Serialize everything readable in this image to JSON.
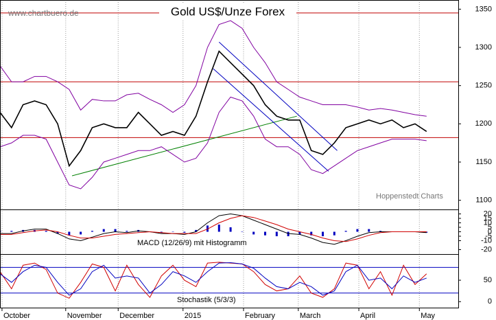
{
  "chart_data": [
    {
      "type": "line",
      "title": "Gold US$/Unze Forex",
      "source": "www.chartbuero.de",
      "credit": "Hoppenstedt Charts",
      "x": [
        0,
        4,
        8,
        12,
        16,
        20,
        24,
        28,
        32,
        36,
        40,
        44,
        48,
        52,
        56,
        60,
        64,
        68,
        72,
        76,
        80,
        84,
        88,
        92,
        96,
        100,
        104,
        108,
        112,
        116,
        120,
        124,
        128,
        132,
        136,
        140,
        144,
        148
      ],
      "series": [
        {
          "color": "#000000",
          "values": [
            1215,
            1195,
            1225,
            1230,
            1225,
            1200,
            1145,
            1165,
            1195,
            1200,
            1195,
            1195,
            1215,
            1200,
            1185,
            1190,
            1185,
            1210,
            1255,
            1295,
            1280,
            1265,
            1250,
            1225,
            1210,
            1205,
            1205,
            1165,
            1160,
            1175,
            1195,
            1200,
            1205,
            1200,
            1205,
            1195,
            1200,
            1190
          ]
        },
        {
          "color": "#8000a0",
          "values": [
            1276,
            1255,
            1255,
            1262,
            1262,
            1255,
            1245,
            1218,
            1232,
            1230,
            1230,
            1238,
            1240,
            1232,
            1225,
            1215,
            1225,
            1250,
            1300,
            1330,
            1335,
            1325,
            1300,
            1280,
            1255,
            1245,
            1235,
            1230,
            1225,
            1225,
            1225,
            1222,
            1218,
            1220,
            1218,
            1215,
            1212,
            1210
          ]
        },
        {
          "color": "#8000a0",
          "values": [
            1170,
            1175,
            1185,
            1185,
            1180,
            1150,
            1120,
            1115,
            1130,
            1150,
            1155,
            1160,
            1165,
            1165,
            1170,
            1160,
            1150,
            1155,
            1175,
            1215,
            1235,
            1230,
            1210,
            1180,
            1170,
            1170,
            1160,
            1140,
            1135,
            1145,
            1155,
            1165,
            1170,
            1175,
            1180,
            1180,
            1180,
            1178
          ]
        }
      ],
      "hlines": [
        1345,
        1255,
        1182
      ],
      "hline_color": "#c00000",
      "trendlines": [
        {
          "color": "#008000",
          "x": [
            25,
            103
          ],
          "y": [
            1132,
            1210
          ]
        },
        {
          "color": "#0000c0",
          "x": [
            76,
            117
          ],
          "y": [
            1307,
            1165
          ]
        },
        {
          "color": "#0000c0",
          "x": [
            74,
            114
          ],
          "y": [
            1272,
            1138
          ]
        }
      ],
      "xlim": [
        0,
        159
      ],
      "ylim": [
        1088,
        1362
      ],
      "yticks": [
        1100,
        1150,
        1200,
        1250,
        1300,
        1350
      ]
    },
    {
      "type": "line",
      "label": "MACD (12/26/9) mit Histogramm",
      "x": [
        0,
        4,
        8,
        12,
        16,
        20,
        24,
        28,
        32,
        36,
        40,
        44,
        48,
        52,
        56,
        60,
        64,
        68,
        72,
        76,
        80,
        84,
        88,
        92,
        96,
        100,
        104,
        108,
        112,
        116,
        120,
        124,
        128,
        132,
        136,
        140,
        144,
        148
      ],
      "series": [
        {
          "kind": "bar",
          "color": "#0000c0",
          "values": [
            1,
            1,
            2,
            2,
            1,
            -2,
            -4,
            -3,
            1,
            3,
            3,
            1,
            2,
            0,
            -1,
            0,
            -1,
            2,
            7,
            8,
            5,
            0,
            -3,
            -4,
            -5,
            -5,
            -3,
            -4,
            -5,
            -4,
            1,
            3,
            3,
            1,
            0,
            0,
            0,
            -1
          ]
        },
        {
          "color": "#000000",
          "values": [
            -2,
            -2,
            1,
            3,
            3,
            -2,
            -8,
            -10,
            -6,
            -2,
            0,
            -1,
            1,
            0,
            -2,
            -2,
            -3,
            0,
            10,
            18,
            20,
            18,
            13,
            8,
            3,
            -2,
            -3,
            -7,
            -12,
            -14,
            -10,
            -5,
            -1,
            0,
            0,
            0,
            0,
            -1
          ]
        },
        {
          "color": "#d00000",
          "values": [
            -3,
            -3,
            -1,
            1,
            2,
            0,
            -4,
            -7,
            -7,
            -5,
            -3,
            -2,
            -1,
            0,
            -1,
            -2,
            -2,
            -2,
            3,
            10,
            15,
            18,
            16,
            12,
            8,
            3,
            0,
            -3,
            -7,
            -10,
            -11,
            -8,
            -4,
            -1,
            0,
            0,
            0,
            0
          ]
        }
      ],
      "xlim": [
        0,
        159
      ],
      "ylim": [
        -25,
        25
      ],
      "yticks": [
        20,
        15,
        10,
        5,
        0,
        -5,
        -10,
        -20
      ]
    },
    {
      "type": "line",
      "label": "Stochastik (5/3/3)",
      "x": [
        0,
        4,
        8,
        12,
        16,
        20,
        24,
        28,
        32,
        36,
        40,
        44,
        48,
        52,
        56,
        60,
        64,
        68,
        72,
        76,
        80,
        84,
        88,
        92,
        96,
        100,
        104,
        108,
        112,
        116,
        120,
        124,
        128,
        132,
        136,
        140,
        144,
        148
      ],
      "series": [
        {
          "color": "#d00000",
          "values": [
            70,
            30,
            85,
            90,
            75,
            20,
            8,
            45,
            88,
            80,
            25,
            85,
            40,
            10,
            60,
            85,
            50,
            35,
            90,
            92,
            90,
            88,
            70,
            40,
            25,
            30,
            60,
            20,
            10,
            30,
            90,
            85,
            30,
            70,
            15,
            85,
            40,
            65
          ]
        },
        {
          "color": "#0000c0",
          "values": [
            65,
            45,
            70,
            85,
            80,
            45,
            15,
            30,
            70,
            85,
            55,
            60,
            55,
            20,
            40,
            70,
            60,
            45,
            70,
            90,
            91,
            88,
            78,
            55,
            35,
            30,
            45,
            35,
            15,
            25,
            70,
            85,
            50,
            55,
            30,
            60,
            45,
            55
          ]
        }
      ],
      "hlines": [
        20,
        80
      ],
      "hline_color": "#0000c0",
      "xlim": [
        0,
        159
      ],
      "ylim": [
        -14,
        111
      ],
      "yticks": [
        0,
        50
      ],
      "xticks": [
        {
          "value": 0.7,
          "label": "October"
        },
        {
          "value": 22.8,
          "label": "November"
        },
        {
          "value": 41,
          "label": "December"
        },
        {
          "value": 63.5,
          "label": "2015"
        },
        {
          "value": 84.5,
          "label": "February"
        },
        {
          "value": 103.5,
          "label": "March"
        },
        {
          "value": 124.5,
          "label": "April"
        },
        {
          "value": 145.5,
          "label": "May"
        }
      ]
    }
  ]
}
